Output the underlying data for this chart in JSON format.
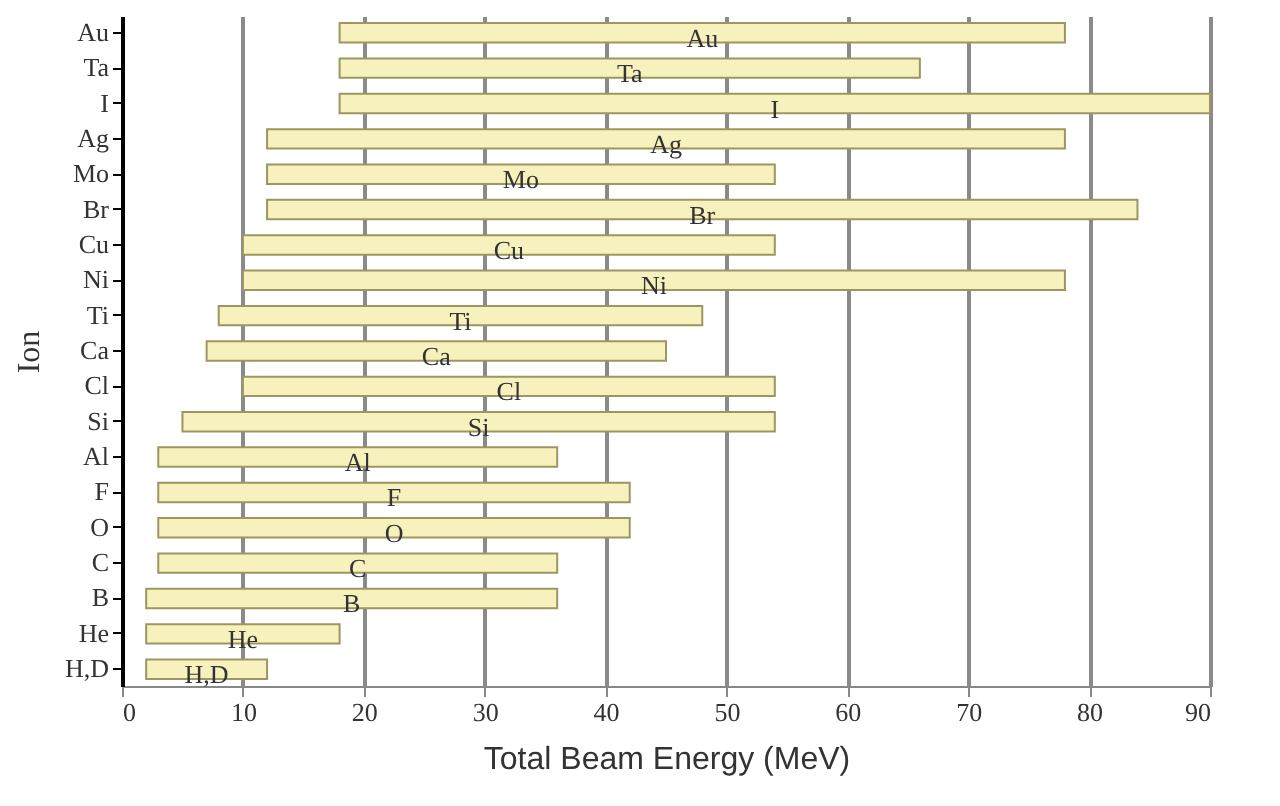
{
  "chart_data": {
    "type": "bar",
    "orientation": "horizontal",
    "xlabel": "Total Beam Energy (MeV)",
    "ylabel": "Ion",
    "categories": [
      "Au",
      "Ta",
      "I",
      "Ag",
      "Mo",
      "Br",
      "Cu",
      "Ni",
      "Ti",
      "Ca",
      "Cl",
      "Si",
      "Al",
      "F",
      "O",
      "C",
      "B",
      "He",
      "H,D"
    ],
    "base": [
      18,
      18,
      18,
      12,
      12,
      12,
      10,
      10,
      8,
      7,
      10,
      5,
      3,
      3,
      3,
      3,
      2,
      2,
      2
    ],
    "values": [
      60,
      48,
      72,
      66,
      42,
      72,
      44,
      68,
      40,
      38,
      44,
      49,
      33,
      39,
      39,
      33,
      34,
      16,
      10
    ],
    "value_labels": [
      "Au",
      "Ta",
      "I",
      "Ag",
      "Mo",
      "Br",
      "Cu",
      "Ni",
      "Ti",
      "Ca",
      "Cl",
      "Si",
      "Al",
      "F",
      "O",
      "C",
      "B",
      "He",
      "H,D"
    ],
    "color": "#f7f2bd",
    "xlim": [
      0,
      90
    ],
    "xticks": [
      0,
      10,
      20,
      30,
      40,
      50,
      60,
      70,
      80,
      90
    ],
    "grid": "x"
  }
}
